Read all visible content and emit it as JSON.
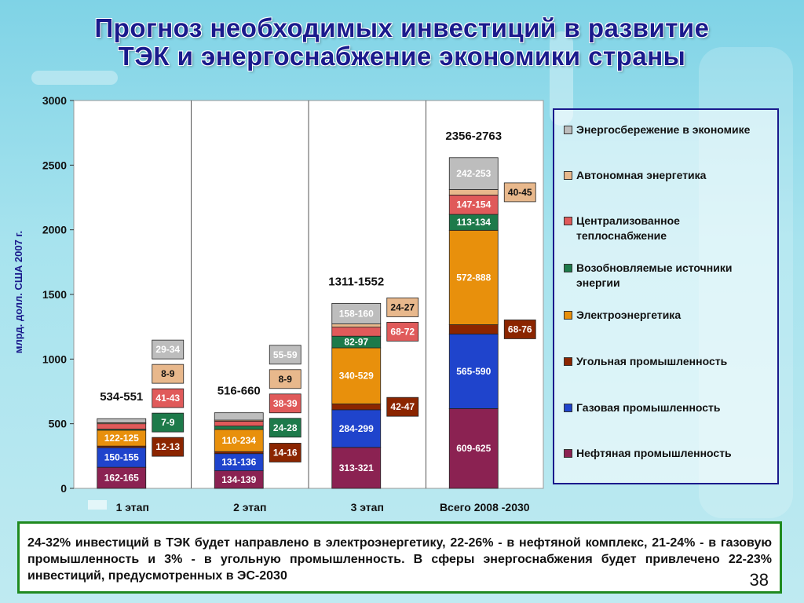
{
  "slide": {
    "title_line1": "Прогноз необходимых инвестиций в развитие",
    "title_line2": "ТЭК и энергоснабжение экономики страны",
    "note": "24-32% инвестиций в ТЭК будет направлено в электроэнергетику,  22-26% - в нефтяной комплекс, 21-24% - в газовую промышленность и 3% - в угольную промышленность. В сферы энергоснабжения будет привлечено 22-23% инвестиций, предусмотренных в ЭС-2030",
    "page_number": "38"
  },
  "chart_data": {
    "type": "bar",
    "stacked": true,
    "ylabel": "млрд. долл. США 2007 г.",
    "ylim": [
      0,
      3000
    ],
    "yticks": [
      0,
      500,
      1000,
      1500,
      2000,
      2500,
      3000
    ],
    "categories": [
      "1 этап",
      "2 этап",
      "3 этап",
      "Всего 2008 -2030"
    ],
    "totals": [
      "534-551",
      "516-660",
      "1311-1552",
      "2356-2763"
    ],
    "legend_position": "right",
    "series": [
      {
        "name": "Нефтяная промышленность",
        "color": "#8b2252",
        "values": [
          163,
          136,
          317,
          617
        ],
        "labels": [
          "162-165",
          "134-139",
          "313-321",
          "609-625"
        ]
      },
      {
        "name": "Газовая промышленность",
        "color": "#1f44cc",
        "values": [
          152,
          133,
          291,
          577
        ],
        "labels": [
          "150-155",
          "131-136",
          "284-299",
          "565-590"
        ]
      },
      {
        "name": "Угольная промышленность",
        "color": "#8b2500",
        "values": [
          12,
          15,
          45,
          72
        ],
        "labels": [
          "12-13",
          "14-16",
          "42-47",
          "68-76"
        ]
      },
      {
        "name": "Электроэнергетика",
        "color": "#e8900c",
        "values": [
          123,
          172,
          434,
          730
        ],
        "labels": [
          "122-125",
          "110-234",
          "340-529",
          "572-888"
        ]
      },
      {
        "name": "Возобновляемые источники энергии",
        "color": "#1d7a4a",
        "values": [
          8,
          26,
          90,
          123
        ],
        "labels": [
          "7-9",
          "24-28",
          "82-97",
          "113-134"
        ]
      },
      {
        "name": "Централизованное теплоснабжение",
        "color": "#e05a5a",
        "values": [
          42,
          38,
          70,
          150
        ],
        "labels": [
          "41-43",
          "38-39",
          "68-72",
          "147-154"
        ]
      },
      {
        "name": "Автономная энергетика",
        "color": "#e8b88c",
        "values": [
          8,
          8,
          25,
          42
        ],
        "labels": [
          "8-9",
          "8-9",
          "24-27",
          "40-45"
        ]
      },
      {
        "name": "Энергосбережение в экономике",
        "color": "#bdbdbd",
        "values": [
          31,
          57,
          159,
          247
        ],
        "labels": [
          "29-34",
          "55-59",
          "158-160",
          "242-253"
        ]
      }
    ],
    "inside_labels": [
      {
        "cat": 0,
        "series": [
          0,
          1,
          3
        ]
      },
      {
        "cat": 1,
        "series": [
          0,
          1,
          3
        ]
      },
      {
        "cat": 2,
        "series": [
          0,
          1,
          3,
          4,
          7
        ]
      },
      {
        "cat": 3,
        "series": [
          0,
          1,
          3,
          4,
          5,
          7
        ]
      }
    ],
    "side_labels": [
      {
        "cat": 0,
        "series": [
          2,
          4,
          5,
          6,
          7
        ]
      },
      {
        "cat": 1,
        "series": [
          2,
          4,
          5,
          6,
          7
        ]
      },
      {
        "cat": 2,
        "series": [
          2,
          5,
          6
        ]
      },
      {
        "cat": 3,
        "series": [
          2,
          6
        ]
      }
    ]
  }
}
